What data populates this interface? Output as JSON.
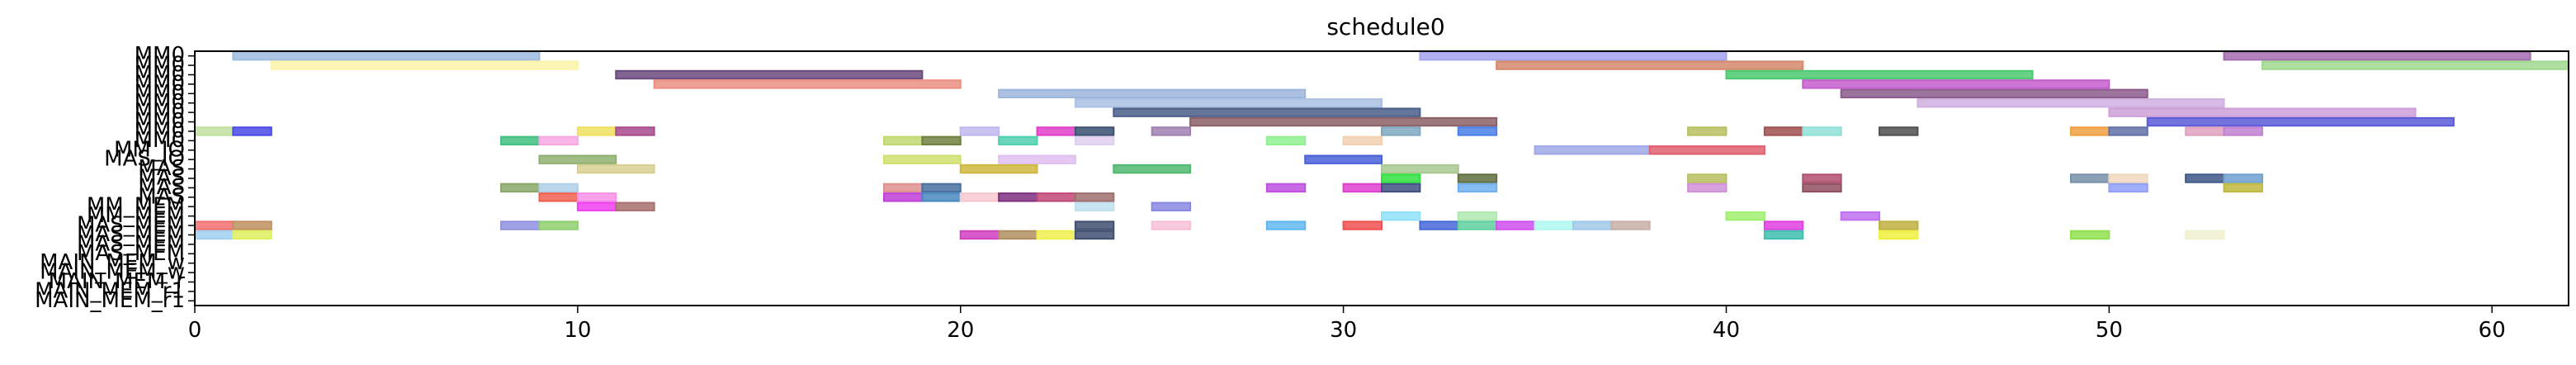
{
  "chart_data": {
    "type": "gantt",
    "title": "schedule0",
    "xlim": [
      0,
      62
    ],
    "x_ticks": [
      0,
      10,
      20,
      30,
      40,
      50,
      60
    ],
    "rows": [
      "MM0",
      "MM0",
      "MM0",
      "MM0",
      "MM0",
      "MM0",
      "MM0",
      "MM0",
      "MM0",
      "MM0",
      "MM_IO",
      "MAS_IO",
      "MAS",
      "MAS",
      "MAS",
      "MAS",
      "MM_MEM",
      "MM_MEM",
      "MAS_MEM",
      "MAS_MEM",
      "MAS_MEM",
      "MAS_MEM",
      "MAIN_MEM",
      "MAIN_MEM",
      "MAIN_MEM",
      "MAIN_MEM",
      "MAIN_MEM"
    ],
    "tick_labels": [
      "MM0",
      "MM0",
      "MM0",
      "MM0",
      "MM0",
      "MM0",
      "MM0",
      "MM0",
      "MM0",
      "MM0",
      "MM_IO",
      "MAS_IO",
      "MAS",
      "MAS",
      "MAS",
      "MAS",
      "MM_MEM",
      "MM_MEM",
      "MAS_MEM",
      "MAS_MEM",
      "MAS_MEM",
      "MAS_MEM",
      "MAIN_MEM_w",
      "MAIN_MEM_w",
      "MAIN_MEM_r",
      "MAIN_MEM_r1",
      "MAIN_MEM_r1"
    ],
    "bars": [
      {
        "row": 0,
        "start": 1,
        "end": 9,
        "color": "#9dbbdf"
      },
      {
        "row": 0,
        "start": 32,
        "end": 40,
        "color": "#a3a3f0"
      },
      {
        "row": 0,
        "start": 53,
        "end": 61,
        "color": "#a46cb0"
      },
      {
        "row": 1,
        "start": 2,
        "end": 10,
        "color": "#fbf3a8"
      },
      {
        "row": 1,
        "start": 34,
        "end": 42,
        "color": "#d58a6c"
      },
      {
        "row": 1,
        "start": 54,
        "end": 62,
        "color": "#a0d98f"
      },
      {
        "row": 2,
        "start": 11,
        "end": 19,
        "color": "#6a4a7e"
      },
      {
        "row": 2,
        "start": 40,
        "end": 48,
        "color": "#4cca70"
      },
      {
        "row": 3,
        "start": 12,
        "end": 20,
        "color": "#ec8f82"
      },
      {
        "row": 3,
        "start": 42,
        "end": 50,
        "color": "#c55dcf"
      },
      {
        "row": 4,
        "start": 21,
        "end": 29,
        "color": "#9db6dd"
      },
      {
        "row": 4,
        "start": 43,
        "end": 51,
        "color": "#8c5c8c"
      },
      {
        "row": 5,
        "start": 23,
        "end": 31,
        "color": "#a9c1e3"
      },
      {
        "row": 5,
        "start": 45,
        "end": 53,
        "color": "#cfb0e0"
      },
      {
        "row": 6,
        "start": 24,
        "end": 32,
        "color": "#4a5e88"
      },
      {
        "row": 6,
        "start": 50,
        "end": 58,
        "color": "#cfa0d8"
      },
      {
        "row": 7,
        "start": 26,
        "end": 34,
        "color": "#8c6066"
      },
      {
        "row": 7,
        "start": 51,
        "end": 59,
        "color": "#5a5ad8"
      },
      {
        "row": 8,
        "start": 0,
        "end": 1,
        "color": "#c2e0a0"
      },
      {
        "row": 8,
        "start": 1,
        "end": 2,
        "color": "#4a4ae6"
      },
      {
        "row": 8,
        "start": 10,
        "end": 11,
        "color": "#f0e060"
      },
      {
        "row": 8,
        "start": 11,
        "end": 12,
        "color": "#a84a8c"
      },
      {
        "row": 8,
        "start": 20,
        "end": 21,
        "color": "#c0b8f0"
      },
      {
        "row": 8,
        "start": 22,
        "end": 23,
        "color": "#e040c8"
      },
      {
        "row": 8,
        "start": 23,
        "end": 24,
        "color": "#3a5070"
      },
      {
        "row": 8,
        "start": 25,
        "end": 26,
        "color": "#a080b0"
      },
      {
        "row": 8,
        "start": 31,
        "end": 32,
        "color": "#80a8c0"
      },
      {
        "row": 8,
        "start": 33,
        "end": 34,
        "color": "#4a80e8"
      },
      {
        "row": 8,
        "start": 39,
        "end": 40,
        "color": "#b8c060"
      },
      {
        "row": 8,
        "start": 41,
        "end": 42,
        "color": "#a05050"
      },
      {
        "row": 8,
        "start": 42,
        "end": 43,
        "color": "#90e0d8"
      },
      {
        "row": 8,
        "start": 44,
        "end": 45,
        "color": "#505050"
      },
      {
        "row": 8,
        "start": 49,
        "end": 50,
        "color": "#f0a040"
      },
      {
        "row": 8,
        "start": 50,
        "end": 51,
        "color": "#6070a8"
      },
      {
        "row": 8,
        "start": 52,
        "end": 53,
        "color": "#e0a0c0"
      },
      {
        "row": 8,
        "start": 53,
        "end": 54,
        "color": "#c080d0"
      },
      {
        "row": 9,
        "start": 8,
        "end": 9,
        "color": "#40c080"
      },
      {
        "row": 9,
        "start": 9,
        "end": 10,
        "color": "#f8a8e0"
      },
      {
        "row": 9,
        "start": 18,
        "end": 19,
        "color": "#c0d870"
      },
      {
        "row": 9,
        "start": 19,
        "end": 20,
        "color": "#708040"
      },
      {
        "row": 9,
        "start": 21,
        "end": 22,
        "color": "#50d0b0"
      },
      {
        "row": 9,
        "start": 23,
        "end": 24,
        "color": "#e0d0f0"
      },
      {
        "row": 9,
        "start": 28,
        "end": 29,
        "color": "#90f090"
      },
      {
        "row": 9,
        "start": 30,
        "end": 31,
        "color": "#f0d0b0"
      },
      {
        "row": 10,
        "start": 35,
        "end": 38,
        "color": "#a0a8e8"
      },
      {
        "row": 10,
        "start": 38,
        "end": 41,
        "color": "#e06070"
      },
      {
        "row": 11,
        "start": 9,
        "end": 11,
        "color": "#90b070"
      },
      {
        "row": 11,
        "start": 18,
        "end": 20,
        "color": "#d0e070"
      },
      {
        "row": 11,
        "start": 21,
        "end": 23,
        "color": "#e0c0f0"
      },
      {
        "row": 11,
        "start": 29,
        "end": 31,
        "color": "#4a60d8"
      },
      {
        "row": 12,
        "start": 10,
        "end": 12,
        "color": "#d8d090"
      },
      {
        "row": 12,
        "start": 20,
        "end": 22,
        "color": "#d0b840"
      },
      {
        "row": 12,
        "start": 24,
        "end": 26,
        "color": "#50b870"
      },
      {
        "row": 12,
        "start": 31,
        "end": 33,
        "color": "#a8c890"
      },
      {
        "row": 13,
        "start": 31,
        "end": 32,
        "color": "#30e040"
      },
      {
        "row": 13,
        "start": 33,
        "end": 34,
        "color": "#607040"
      },
      {
        "row": 13,
        "start": 39,
        "end": 40,
        "color": "#b8c060"
      },
      {
        "row": 13,
        "start": 42,
        "end": 43,
        "color": "#b05070"
      },
      {
        "row": 13,
        "start": 49,
        "end": 50,
        "color": "#7890a8"
      },
      {
        "row": 13,
        "start": 50,
        "end": 51,
        "color": "#f0d8c0"
      },
      {
        "row": 13,
        "start": 52,
        "end": 53,
        "color": "#405888"
      },
      {
        "row": 13,
        "start": 53,
        "end": 54,
        "color": "#70a0d0"
      },
      {
        "row": 14,
        "start": 8,
        "end": 9,
        "color": "#88a868"
      },
      {
        "row": 14,
        "start": 9,
        "end": 10,
        "color": "#b0d0e8"
      },
      {
        "row": 14,
        "start": 18,
        "end": 19,
        "color": "#e09090"
      },
      {
        "row": 14,
        "start": 19,
        "end": 20,
        "color": "#4870a0"
      },
      {
        "row": 14,
        "start": 28,
        "end": 29,
        "color": "#c050e0"
      },
      {
        "row": 14,
        "start": 30,
        "end": 31,
        "color": "#e040d0"
      },
      {
        "row": 14,
        "start": 31,
        "end": 32,
        "color": "#405080"
      },
      {
        "row": 14,
        "start": 33,
        "end": 34,
        "color": "#70b0f0"
      },
      {
        "row": 14,
        "start": 39,
        "end": 40,
        "color": "#d090d8"
      },
      {
        "row": 14,
        "start": 42,
        "end": 43,
        "color": "#905060"
      },
      {
        "row": 14,
        "start": 50,
        "end": 51,
        "color": "#90a0f8"
      },
      {
        "row": 14,
        "start": 53,
        "end": 54,
        "color": "#c0b840"
      },
      {
        "row": 15,
        "start": 9,
        "end": 10,
        "color": "#f06050"
      },
      {
        "row": 15,
        "start": 10,
        "end": 11,
        "color": "#f890e8"
      },
      {
        "row": 15,
        "start": 18,
        "end": 19,
        "color": "#c040d8"
      },
      {
        "row": 15,
        "start": 19,
        "end": 20,
        "color": "#4888c0"
      },
      {
        "row": 15,
        "start": 20,
        "end": 21,
        "color": "#f8c8d0"
      },
      {
        "row": 15,
        "start": 21,
        "end": 22,
        "color": "#803080"
      },
      {
        "row": 15,
        "start": 22,
        "end": 23,
        "color": "#c04878"
      },
      {
        "row": 15,
        "start": 23,
        "end": 24,
        "color": "#a07070"
      },
      {
        "row": 16,
        "start": 10,
        "end": 11,
        "color": "#f040f0"
      },
      {
        "row": 16,
        "start": 11,
        "end": 12,
        "color": "#a87070"
      },
      {
        "row": 16,
        "start": 23,
        "end": 24,
        "color": "#c0e0f0"
      },
      {
        "row": 16,
        "start": 25,
        "end": 26,
        "color": "#8888e0"
      },
      {
        "row": 17,
        "start": 31,
        "end": 32,
        "color": "#90e0f8"
      },
      {
        "row": 17,
        "start": 33,
        "end": 34,
        "color": "#b0e8b0"
      },
      {
        "row": 17,
        "start": 40,
        "end": 41,
        "color": "#a0f070"
      },
      {
        "row": 17,
        "start": 43,
        "end": 44,
        "color": "#c070f0"
      },
      {
        "row": 18,
        "start": 0,
        "end": 1,
        "color": "#f07070"
      },
      {
        "row": 18,
        "start": 1,
        "end": 2,
        "color": "#c09060"
      },
      {
        "row": 18,
        "start": 8,
        "end": 9,
        "color": "#9090e0"
      },
      {
        "row": 18,
        "start": 9,
        "end": 10,
        "color": "#90d070"
      },
      {
        "row": 18,
        "start": 23,
        "end": 24,
        "color": "#405070"
      },
      {
        "row": 18,
        "start": 25,
        "end": 26,
        "color": "#f8c0d8"
      },
      {
        "row": 18,
        "start": 28,
        "end": 29,
        "color": "#60b8f0"
      },
      {
        "row": 18,
        "start": 30,
        "end": 31,
        "color": "#f05050"
      },
      {
        "row": 18,
        "start": 32,
        "end": 33,
        "color": "#4868d8"
      },
      {
        "row": 18,
        "start": 33,
        "end": 34,
        "color": "#60d0a0"
      },
      {
        "row": 18,
        "start": 34,
        "end": 35,
        "color": "#d050f0"
      },
      {
        "row": 18,
        "start": 35,
        "end": 36,
        "color": "#b0f8f0"
      },
      {
        "row": 18,
        "start": 36,
        "end": 37,
        "color": "#a0c8e8"
      },
      {
        "row": 18,
        "start": 37,
        "end": 38,
        "color": "#c8b0a8"
      },
      {
        "row": 18,
        "start": 41,
        "end": 42,
        "color": "#e040e0"
      },
      {
        "row": 18,
        "start": 44,
        "end": 45,
        "color": "#c0b040"
      },
      {
        "row": 19,
        "start": 0,
        "end": 1,
        "color": "#a0d0f0"
      },
      {
        "row": 19,
        "start": 1,
        "end": 2,
        "color": "#e0f060"
      },
      {
        "row": 19,
        "start": 20,
        "end": 21,
        "color": "#d040c0"
      },
      {
        "row": 19,
        "start": 21,
        "end": 22,
        "color": "#b09060"
      },
      {
        "row": 19,
        "start": 22,
        "end": 23,
        "color": "#f0f050"
      },
      {
        "row": 19,
        "start": 23,
        "end": 24,
        "color": "#405070"
      },
      {
        "row": 19,
        "start": 41,
        "end": 42,
        "color": "#40c0b0"
      },
      {
        "row": 19,
        "start": 44,
        "end": 45,
        "color": "#f0f040"
      },
      {
        "row": 19,
        "start": 49,
        "end": 50,
        "color": "#90e050"
      },
      {
        "row": 19,
        "start": 52,
        "end": 53,
        "color": "#f0f0d0"
      }
    ]
  }
}
